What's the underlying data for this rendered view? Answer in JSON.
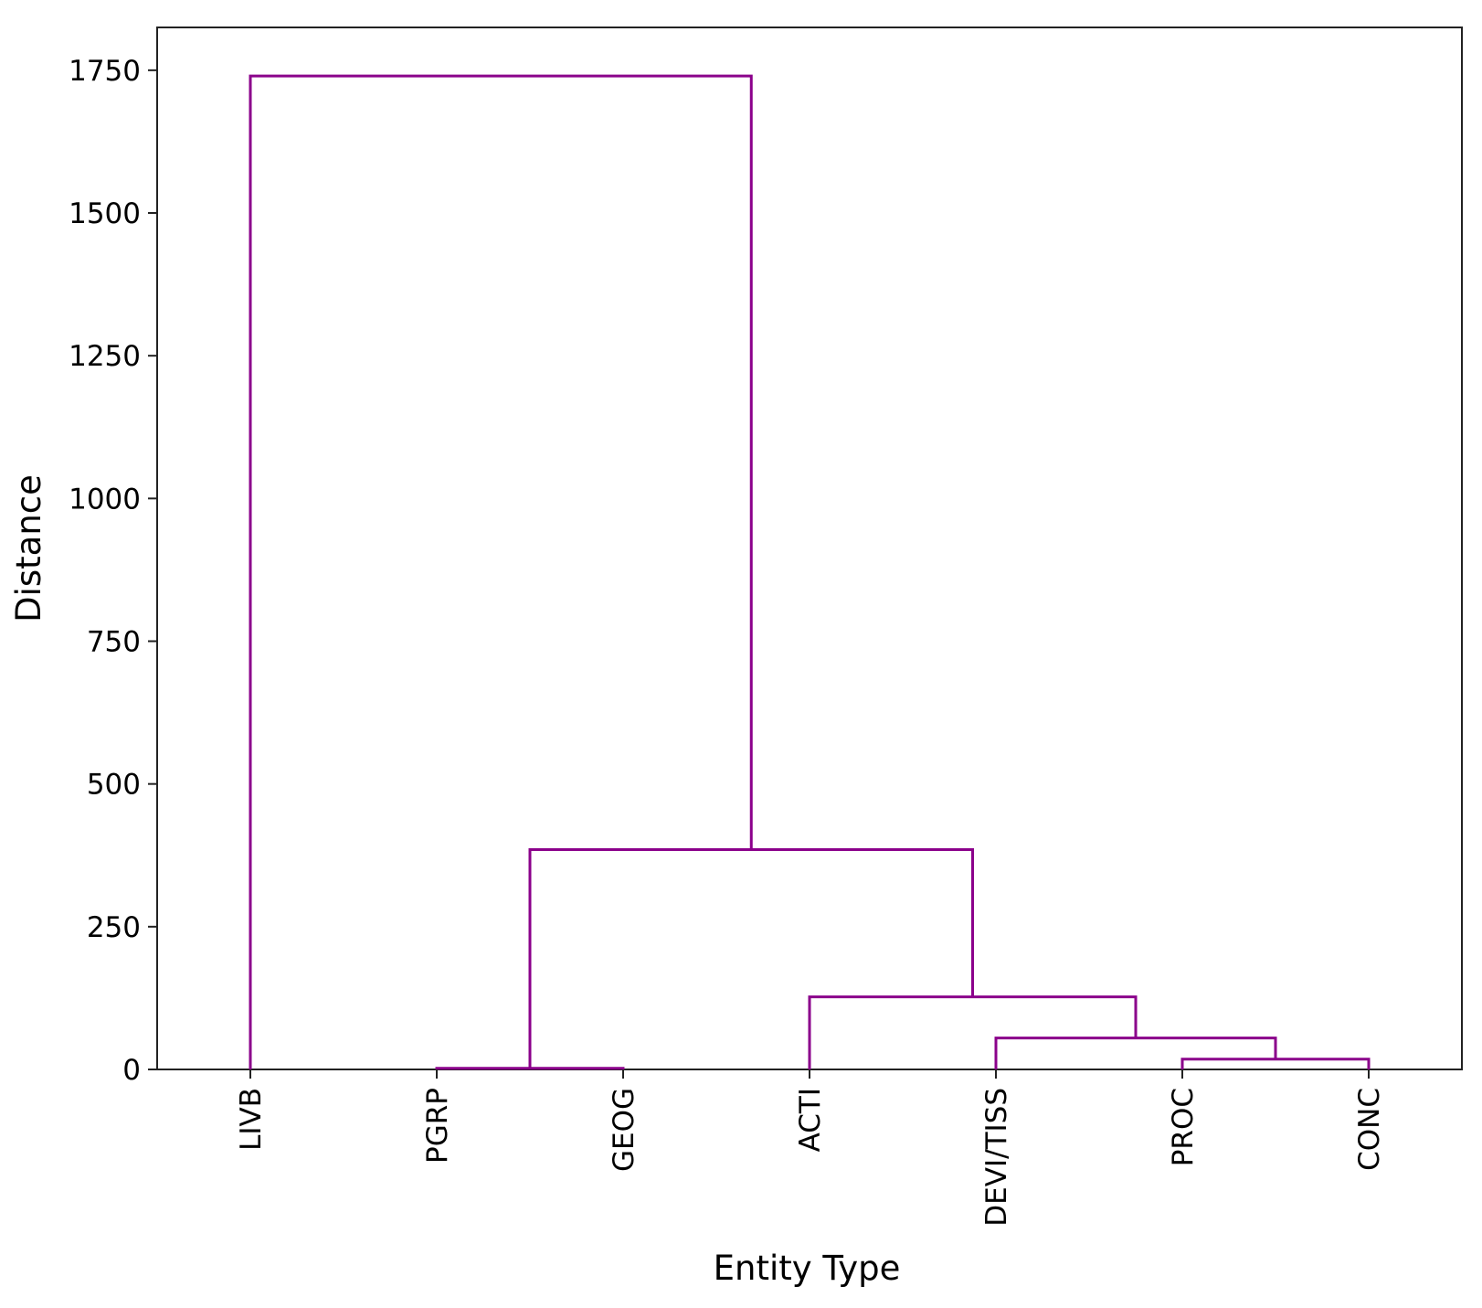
{
  "chart_data": {
    "type": "dendrogram",
    "title": "",
    "xlabel": "Entity Type",
    "ylabel": "Distance",
    "ylim": [
      0,
      1825
    ],
    "yticks": [
      0,
      250,
      500,
      750,
      1000,
      1250,
      1500,
      1750
    ],
    "leaves": [
      "LIVB",
      "PGRP",
      "GEOG",
      "ACTI",
      "DEVI/TISS",
      "PROC",
      "CONC"
    ],
    "link_color": "#8b008b",
    "grid": false,
    "legend": "none",
    "merges": [
      {
        "left": "PROC",
        "right": "CONC",
        "distance": 18
      },
      {
        "left": "DEVI/TISS",
        "right": "PROC+CONC",
        "distance": 55
      },
      {
        "left": "ACTI",
        "right": "DEVI/TISS+PROC+CONC",
        "distance": 127
      },
      {
        "left": "PGRP",
        "right": "GEOG",
        "distance": 2
      },
      {
        "left": "PGRP+GEOG",
        "right": "ACTI+DEVI/TISS+PROC+CONC",
        "distance": 385
      },
      {
        "left": "LIVB",
        "right": "PGRP+GEOG+ACTI+DEVI/TISS+PROC+CONC",
        "distance": 1740
      }
    ]
  }
}
